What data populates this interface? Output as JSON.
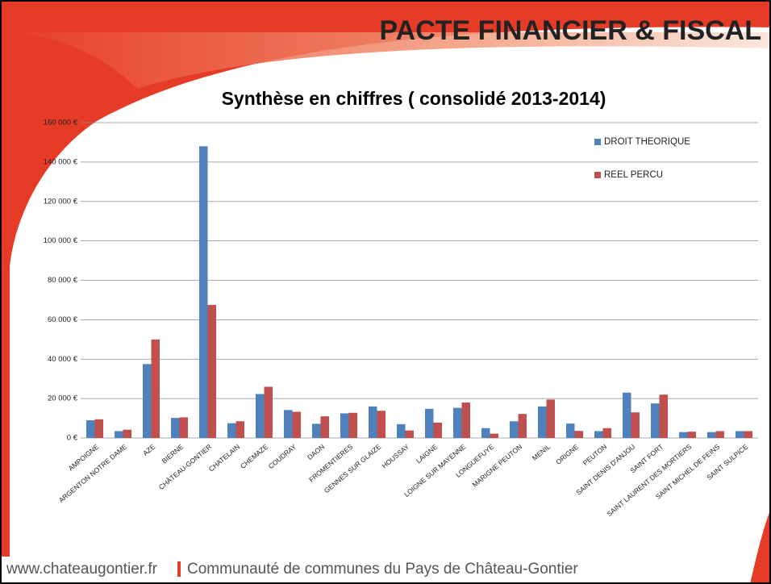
{
  "header": {
    "title": "PACTE FINANCIER & FISCAL"
  },
  "chart_data": {
    "type": "bar",
    "title": "Synthèse en chiffres ( consolidé  2013-2014)",
    "categories": [
      "AMPOIGNE",
      "ARGENTON NOTRE DAME",
      "AZE",
      "BIERNE",
      "CHÂTEAU-GONTIER",
      "CHATELAIN",
      "CHEMAZE",
      "COUDRAY",
      "DAON",
      "FROMENTIERES",
      "GENNES SUR GLAIZE",
      "HOUSSAY",
      "LAIGNE",
      "LOIGNE SUR MAYENNE",
      "LONGUEFUYE",
      "MARIGNE PEUTON",
      "MENIL",
      "ORIGNE",
      "PEUTON",
      "SAINT DENIS D'ANJOU",
      "SAINT FORT",
      "SAINT LAURENT DES MORTIERS",
      "SAINT MICHEL DE FEINS",
      "SAINT SULPICE"
    ],
    "series": [
      {
        "name": "DROIT THEORIQUE",
        "color": "#4f81bd",
        "values": [
          9000,
          3500,
          37500,
          10200,
          148000,
          7500,
          22300,
          14200,
          7200,
          12500,
          16000,
          7000,
          14800,
          15300,
          5000,
          8500,
          16000,
          7300,
          3500,
          23000,
          17500,
          3000,
          3000,
          3500
        ]
      },
      {
        "name": "REEL PERCU",
        "color": "#c0504d",
        "values": [
          9500,
          4200,
          50000,
          10500,
          67500,
          8500,
          26000,
          13300,
          11000,
          12800,
          13800,
          3800,
          7800,
          18000,
          2200,
          12200,
          19500,
          3600,
          5000,
          13000,
          22000,
          3200,
          3500,
          3500
        ]
      }
    ],
    "ylim": [
      0,
      160000
    ],
    "yticks": [
      {
        "value": 0,
        "label": "0 €"
      },
      {
        "value": 20000,
        "label": "20 000 €"
      },
      {
        "value": 40000,
        "label": "40 000 €"
      },
      {
        "value": 60000,
        "label": "60 000 €"
      },
      {
        "value": 80000,
        "label": "80 000 €"
      },
      {
        "value": 100000,
        "label": "100 000 €"
      },
      {
        "value": 120000,
        "label": "120 000 €"
      },
      {
        "value": 140000,
        "label": "140 000 €"
      },
      {
        "value": 160000,
        "label": "160 000 €"
      }
    ],
    "grid": true,
    "legend": "top-right"
  },
  "footer": {
    "site": "www.chateaugontier.fr",
    "organization": "Communauté de communes du Pays de Château-Gontier"
  }
}
